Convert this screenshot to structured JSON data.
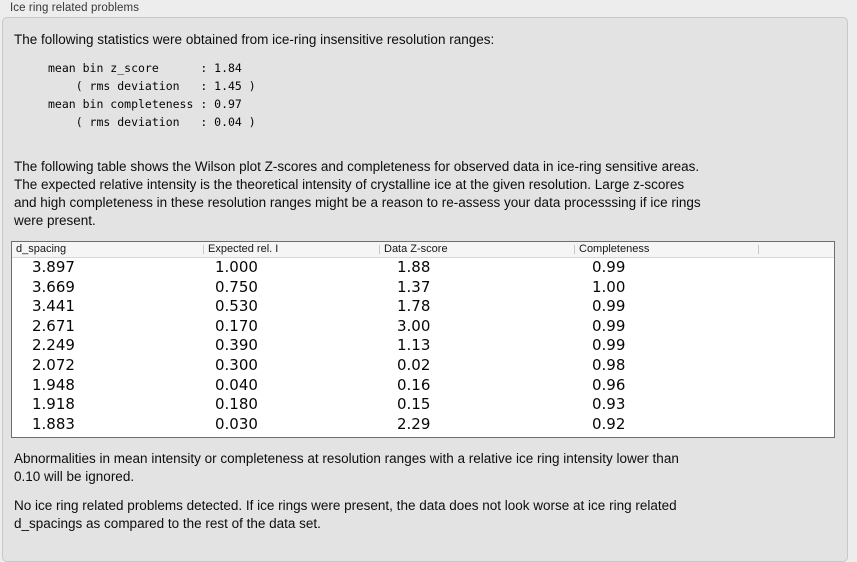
{
  "panel": {
    "title": "Ice ring related problems"
  },
  "intro": "The following statistics were obtained from ice-ring insensitive resolution ranges:",
  "stats_block": "mean bin z_score      : 1.84\n    ( rms deviation   : 1.45 )\nmean bin completeness : 0.97\n    ( rms deviation   : 0.04 )",
  "description": "The following table shows the Wilson plot Z-scores and completeness for observed data in ice-ring sensitive areas.\nThe expected relative intensity is the theoretical intensity of crystalline ice at the given resolution. Large z-scores\nand high completeness in these resolution ranges might be a reason to re-assess your data processsing if ice rings\nwere present.",
  "table": {
    "columns": [
      "d_spacing",
      "Expected rel. I",
      "Data Z-score",
      "Completeness",
      ""
    ],
    "rows": [
      [
        "3.897",
        "1.000",
        "1.88",
        "0.99"
      ],
      [
        "3.669",
        "0.750",
        "1.37",
        "1.00"
      ],
      [
        "3.441",
        "0.530",
        "1.78",
        "0.99"
      ],
      [
        "2.671",
        "0.170",
        "3.00",
        "0.99"
      ],
      [
        "2.249",
        "0.390",
        "1.13",
        "0.99"
      ],
      [
        "2.072",
        "0.300",
        "0.02",
        "0.98"
      ],
      [
        "1.948",
        "0.040",
        "0.16",
        "0.96"
      ],
      [
        "1.918",
        "0.180",
        "0.15",
        "0.93"
      ],
      [
        "1.883",
        "0.030",
        "2.29",
        "0.92"
      ]
    ]
  },
  "notes": {
    "threshold": "Abnormalities in mean intensity or completeness at resolution ranges with a relative ice ring intensity lower than\n0.10 will be ignored.",
    "conclusion": "No ice ring related problems detected. If ice rings were present, the data does not look worse at ice ring related\nd_spacings as compared to the rest of the data set."
  },
  "colors": {
    "page_bg": "#ededed",
    "panel_bg": "#e3e3e3",
    "panel_border": "#c8c8c8",
    "table_border": "#6e6e6e",
    "table_header_bg": "#f5f5f5",
    "text": "#0d0d0d"
  }
}
